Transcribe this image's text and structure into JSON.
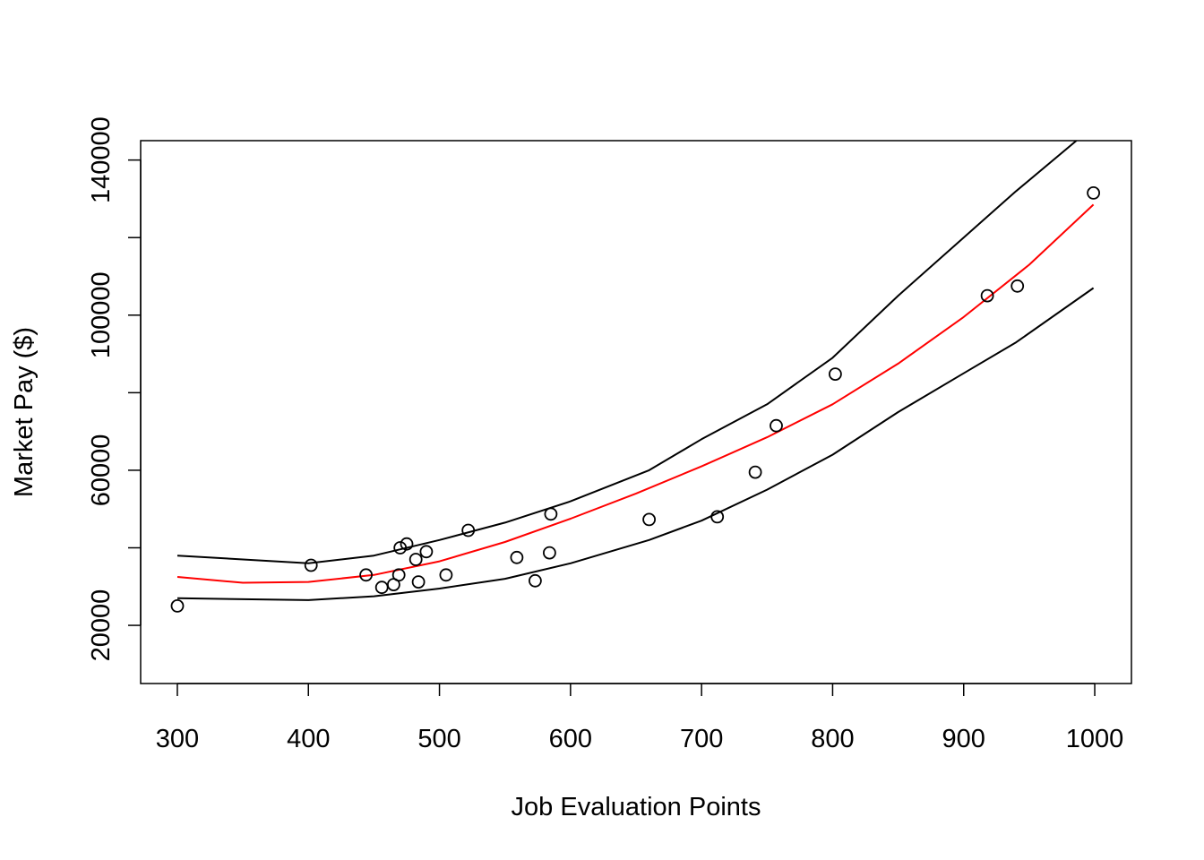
{
  "chart_data": {
    "type": "scatter",
    "title": "",
    "xlabel": "Job Evaluation Points",
    "ylabel": "Market Pay ($)",
    "xlim": [
      272,
      1028
    ],
    "ylim": [
      5000,
      145000
    ],
    "xticks": [
      300,
      400,
      500,
      600,
      700,
      800,
      900,
      1000
    ],
    "yticks": [
      20000,
      60000,
      100000,
      140000
    ],
    "grid": false,
    "legend": "none",
    "colors": {
      "points": "#000000",
      "fit": "#ff0000",
      "bands": "#000000",
      "frame": "#000000"
    },
    "points": [
      {
        "x": 300,
        "y": 25000
      },
      {
        "x": 402,
        "y": 35500
      },
      {
        "x": 444,
        "y": 33000
      },
      {
        "x": 456,
        "y": 29800
      },
      {
        "x": 465,
        "y": 30500
      },
      {
        "x": 469,
        "y": 33000
      },
      {
        "x": 470,
        "y": 40000
      },
      {
        "x": 475,
        "y": 41000
      },
      {
        "x": 482,
        "y": 37000
      },
      {
        "x": 484,
        "y": 31200
      },
      {
        "x": 490,
        "y": 39000
      },
      {
        "x": 505,
        "y": 33000
      },
      {
        "x": 522,
        "y": 44500
      },
      {
        "x": 559,
        "y": 37500
      },
      {
        "x": 573,
        "y": 31500
      },
      {
        "x": 584,
        "y": 38700
      },
      {
        "x": 585,
        "y": 48700
      },
      {
        "x": 660,
        "y": 47300
      },
      {
        "x": 712,
        "y": 48000
      },
      {
        "x": 741,
        "y": 59500
      },
      {
        "x": 757,
        "y": 71500
      },
      {
        "x": 802,
        "y": 84800
      },
      {
        "x": 918,
        "y": 105000
      },
      {
        "x": 941,
        "y": 107500
      },
      {
        "x": 999,
        "y": 131500
      }
    ],
    "series": [
      {
        "role": "fit",
        "x": [
          300,
          350,
          400,
          450,
          500,
          550,
          600,
          650,
          700,
          750,
          800,
          850,
          900,
          950,
          999
        ],
        "values": [
          32500,
          31000,
          31200,
          33000,
          36500,
          41500,
          47500,
          54000,
          61000,
          68500,
          77000,
          87500,
          99500,
          113000,
          128500
        ]
      },
      {
        "role": "upper",
        "x": [
          300,
          400,
          450,
          500,
          550,
          600,
          660,
          700,
          750,
          800,
          850,
          900,
          940,
          986
        ],
        "values": [
          38000,
          36000,
          38000,
          42000,
          46500,
          52000,
          60000,
          68000,
          77000,
          89000,
          105000,
          120000,
          132000,
          145000
        ]
      },
      {
        "role": "lower",
        "x": [
          300,
          400,
          450,
          500,
          550,
          600,
          660,
          700,
          750,
          800,
          850,
          900,
          940,
          999
        ],
        "values": [
          27000,
          26500,
          27500,
          29500,
          32000,
          36000,
          42000,
          47000,
          55000,
          64000,
          75000,
          85000,
          93000,
          107000
        ]
      }
    ]
  }
}
